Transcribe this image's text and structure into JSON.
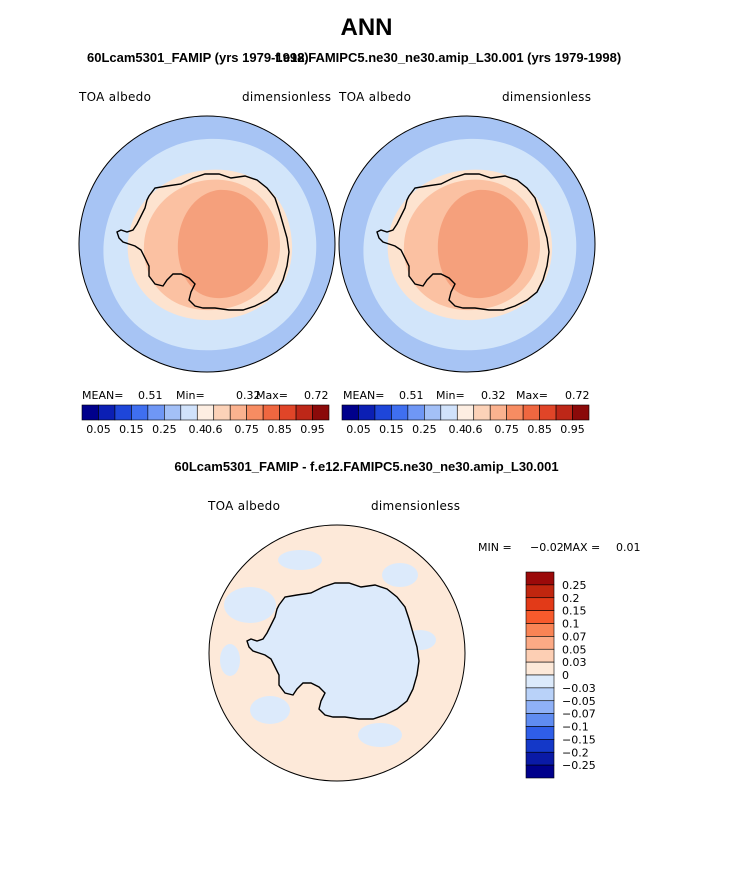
{
  "figure": {
    "title": "ANN",
    "left_panel_title": "60Lcam5301_FAMIP (yrs 1979-1998)",
    "right_panel_title": "f.e12.FAMIPC5.ne30_ne30.amip_L30.001 (yrs 1979-1998)",
    "diff_title": "60Lcam5301_FAMIP - f.e12.FAMIPC5.ne30_ne30.amip_L30.001"
  },
  "colors": {
    "land_outline": "#000000",
    "base_blue": "#a7c4f4",
    "light_blue": "#d2e5fa",
    "cream": "#fde3cf",
    "peach": "#fbc1a2",
    "salmon": "#f5a07c",
    "diff_pos": "#fde9d9",
    "diff_neg": "#dceafb"
  },
  "chart_data": [
    {
      "type": "heatmap",
      "panel": "left",
      "variable_label": "TOA albedo",
      "units_label": "dimensionless",
      "stats": {
        "mean_label": "MEAN=",
        "mean": "0.51",
        "min_label": "Min=",
        "min": "0.32",
        "max_label": "Max=",
        "max": "0.72"
      },
      "colorbar": {
        "colors": [
          "#00008b",
          "#0b1fb4",
          "#1e46d9",
          "#3f6ff0",
          "#6f97f5",
          "#a3c0f7",
          "#d0e2fb",
          "#fdeee2",
          "#fcd2b8",
          "#fbb28f",
          "#f78c62",
          "#ef6740",
          "#e04528",
          "#bd2718",
          "#8b0a0a"
        ],
        "tick_labels": [
          "0.05",
          "0.15",
          "0.25",
          "0.4",
          "0.6",
          "0.75",
          "0.85",
          "0.95"
        ]
      }
    },
    {
      "type": "heatmap",
      "panel": "right",
      "variable_label": "TOA albedo",
      "units_label": "dimensionless",
      "stats": {
        "mean_label": "MEAN=",
        "mean": "0.51",
        "min_label": "Min=",
        "min": "0.32",
        "max_label": "Max=",
        "max": "0.72"
      },
      "colorbar": {
        "colors": [
          "#00008b",
          "#0b1fb4",
          "#1e46d9",
          "#3f6ff0",
          "#6f97f5",
          "#a3c0f7",
          "#d0e2fb",
          "#fdeee2",
          "#fcd2b8",
          "#fbb28f",
          "#f78c62",
          "#ef6740",
          "#e04528",
          "#bd2718",
          "#8b0a0a"
        ],
        "tick_labels": [
          "0.05",
          "0.15",
          "0.25",
          "0.4",
          "0.6",
          "0.75",
          "0.85",
          "0.95"
        ]
      }
    },
    {
      "type": "heatmap",
      "panel": "difference",
      "variable_label": "TOA albedo",
      "units_label": "dimensionless",
      "stats": {
        "min_label": "MIN =",
        "min": "−0.02",
        "max_label": "MAX =",
        "max": "0.01"
      },
      "colorbar": {
        "colors_top_to_bottom": [
          "#9b0a0a",
          "#c0260f",
          "#e23a18",
          "#f75a2c",
          "#f98455",
          "#fcaa85",
          "#fdcfb4",
          "#fde9d9",
          "#dceafb",
          "#b9d2f9",
          "#8fb1f7",
          "#5f8cf1",
          "#2f5ee8",
          "#1438c8",
          "#0a1aa6",
          "#00008b"
        ],
        "tick_labels_top_to_bottom": [
          "0.25",
          "0.2",
          "0.15",
          "0.1",
          "0.07",
          "0.05",
          "0.03",
          "0",
          "−0.03",
          "−0.05",
          "−0.07",
          "−0.1",
          "−0.15",
          "−0.2",
          "−0.25"
        ]
      }
    }
  ]
}
